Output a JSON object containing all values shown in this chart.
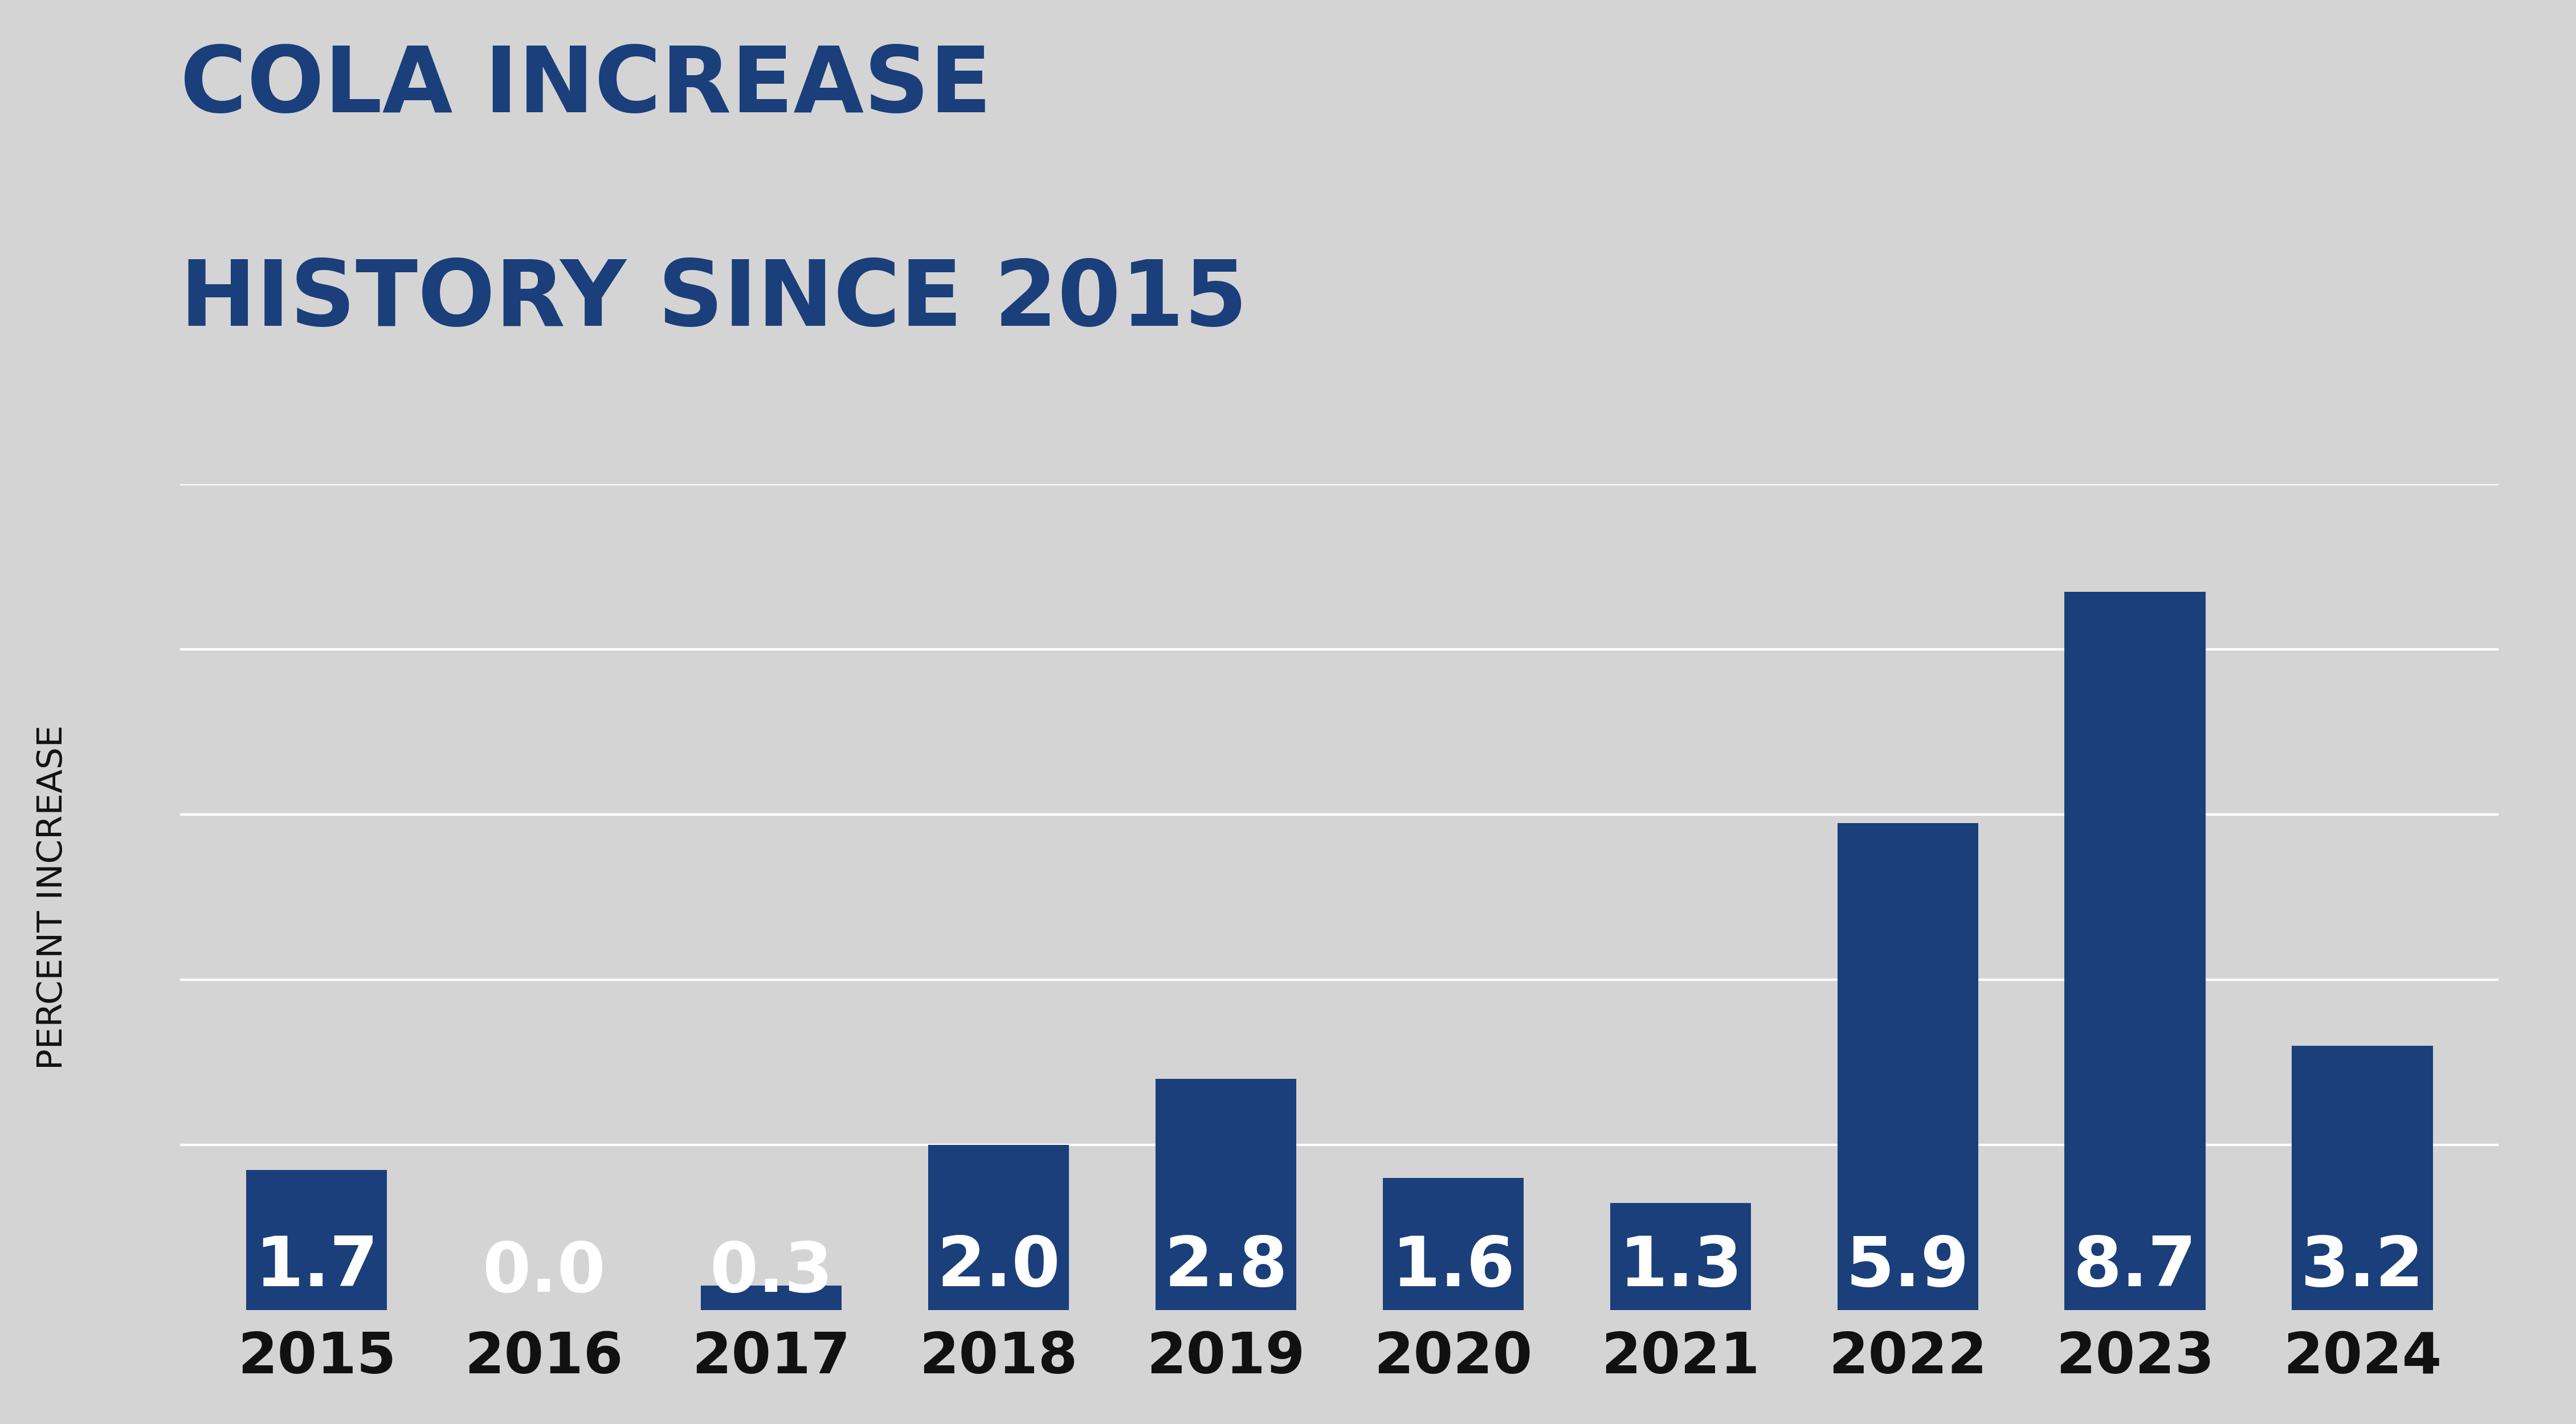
{
  "title_line1": "COLA INCREASE",
  "title_line2": "HISTORY SINCE 2015",
  "ylabel": "PERCENT INCREASE",
  "categories": [
    "2015",
    "2016",
    "2017",
    "2018",
    "2019",
    "2020",
    "2021",
    "2022",
    "2023",
    "2024"
  ],
  "values": [
    1.7,
    0.0,
    0.3,
    2.0,
    2.8,
    1.6,
    1.3,
    5.9,
    8.7,
    3.2
  ],
  "bar_color": "#1a3f7a",
  "label_color": "#ffffff",
  "title_color": "#1a3f7a",
  "ylabel_color": "#111111",
  "background_color": "#d4d4d4",
  "grid_color": "#ffffff",
  "xtick_color": "#111111",
  "ylim": [
    0,
    10
  ],
  "yticks": [
    2,
    4,
    6,
    8,
    10
  ],
  "title_fontsize": 115,
  "label_fontsize": 88,
  "xtick_fontsize": 72,
  "ylabel_fontsize": 44,
  "bar_width": 0.62
}
